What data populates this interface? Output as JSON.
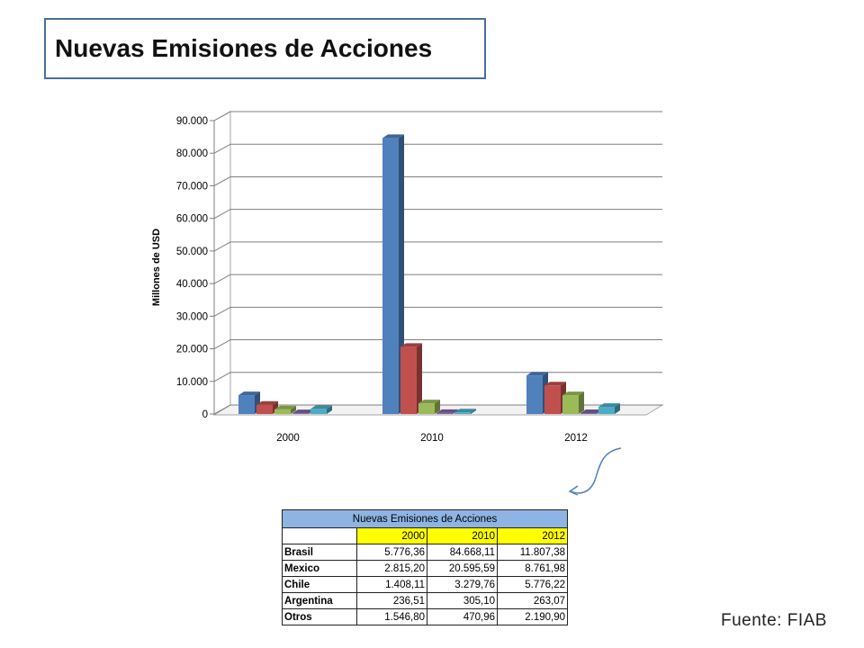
{
  "slide": {
    "title": "Nuevas Emisiones de Acciones",
    "source": "Fuente: FIAB"
  },
  "chart_data": {
    "type": "bar",
    "title": "",
    "xlabel": "",
    "ylabel": "Millones de USD",
    "categories": [
      "2000",
      "2010",
      "2012"
    ],
    "ylim": [
      0,
      90000
    ],
    "yticks": [
      "0",
      "10.000",
      "20.000",
      "30.000",
      "40.000",
      "50.000",
      "60.000",
      "70.000",
      "80.000",
      "90.000"
    ],
    "grid": true,
    "legend": "right",
    "style": "3d-clustered-column",
    "series": [
      {
        "name": "Brasil",
        "values": [
          5776.36,
          84668.11,
          11807.38
        ],
        "color": "#4f81bd"
      },
      {
        "name": "Mexico",
        "values": [
          2815.2,
          20595.59,
          8761.98
        ],
        "color": "#c0504d"
      },
      {
        "name": "Chile",
        "values": [
          1408.11,
          3279.76,
          5776.22
        ],
        "color": "#9bbb59"
      },
      {
        "name": "Argentina",
        "values": [
          236.51,
          305.1,
          263.07
        ],
        "color": "#8064a2"
      },
      {
        "name": "Otros",
        "values": [
          1546.8,
          470.96,
          2190.9
        ],
        "color": "#4bacc6"
      }
    ]
  },
  "table": {
    "caption": "Nuevas Emisiones de Acciones",
    "headers": [
      "2000",
      "2010",
      "2012"
    ],
    "rows": [
      {
        "label": "Brasil",
        "values": [
          "5.776,36",
          "84.668,11",
          "11.807,38"
        ]
      },
      {
        "label": "Mexico",
        "values": [
          "2.815,20",
          "20.595,59",
          "8.761,98"
        ]
      },
      {
        "label": "Chile",
        "values": [
          "1.408,11",
          "3.279,76",
          "5.776,22"
        ]
      },
      {
        "label": "Argentina",
        "values": [
          "236,51",
          "305,10",
          "263,07"
        ]
      },
      {
        "label": "Otros",
        "values": [
          "1.546,80",
          "470,96",
          "2.190,90"
        ]
      }
    ]
  }
}
